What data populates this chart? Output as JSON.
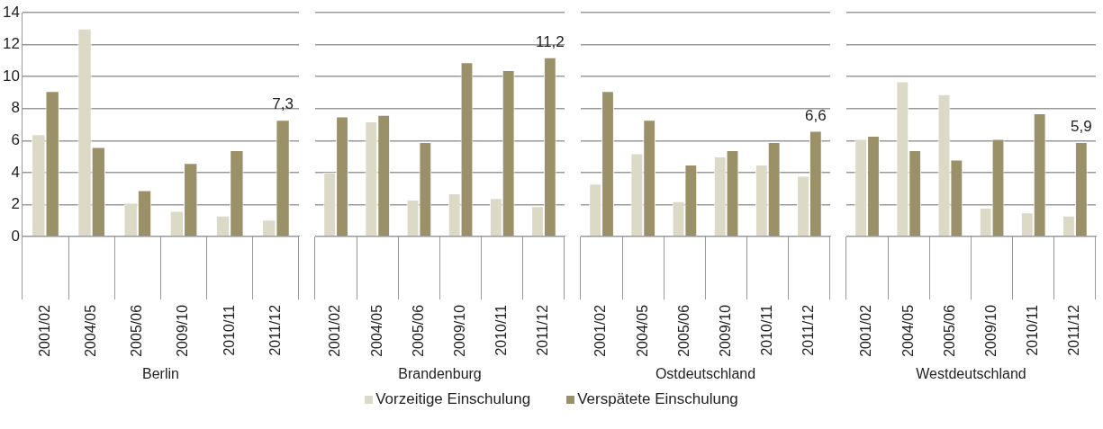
{
  "chart_data": [
    {
      "type": "bar",
      "xlabel": "Berlin",
      "categories": [
        "2001/02",
        "2004/05",
        "2005/06",
        "2009/10",
        "2010/11",
        "2011/12"
      ],
      "ylim": [
        0,
        14
      ],
      "yticks": [
        0,
        2,
        4,
        6,
        8,
        10,
        12,
        14
      ],
      "grid": "y",
      "legend": "bottom",
      "series": [
        {
          "name": "Vorzeitige Einschulung",
          "color": "#dcd9c6",
          "values": [
            6.4,
            13.0,
            2.1,
            1.6,
            1.3,
            1.05
          ]
        },
        {
          "name": "Verspätete Einschulung",
          "color": "#9b9169",
          "values": [
            9.1,
            5.6,
            2.9,
            4.6,
            5.4,
            7.3
          ],
          "value_labels": [
            null,
            null,
            null,
            null,
            null,
            "7,3"
          ]
        }
      ]
    },
    {
      "type": "bar",
      "xlabel": "Brandenburg",
      "categories": [
        "2001/02",
        "2004/05",
        "2005/06",
        "2009/10",
        "2010/11",
        "2011/12"
      ],
      "ylim": [
        0,
        14
      ],
      "yticks": [
        0,
        2,
        4,
        6,
        8,
        10,
        12,
        14
      ],
      "grid": "y",
      "tick_labels": "x",
      "series": [
        {
          "color": "#dcd9c6",
          "values": [
            4.0,
            7.2,
            2.3,
            2.7,
            2.4,
            1.9
          ]
        },
        {
          "color": "#9b9169",
          "values": [
            7.5,
            7.6,
            5.9,
            10.9,
            10.4,
            11.2
          ],
          "value_labels": [
            null,
            null,
            null,
            null,
            null,
            "11,2"
          ]
        }
      ]
    },
    {
      "type": "bar",
      "xlabel": "Ostdeutschland",
      "categories": [
        "2001/02",
        "2004/05",
        "2005/06",
        "2009/10",
        "2010/11",
        "2011/12"
      ],
      "ylim": [
        0,
        14
      ],
      "yticks": [
        0,
        2,
        4,
        6,
        8,
        10,
        12,
        14
      ],
      "grid": "y",
      "tick_labels": "x",
      "series": [
        {
          "color": "#dcd9c6",
          "values": [
            3.3,
            5.2,
            2.2,
            5.0,
            4.5,
            3.8
          ]
        },
        {
          "color": "#9b9169",
          "values": [
            9.1,
            7.3,
            4.5,
            5.4,
            5.9,
            6.6
          ],
          "value_labels": [
            null,
            null,
            null,
            null,
            null,
            "6,6"
          ]
        }
      ]
    },
    {
      "type": "bar",
      "xlabel": "Westdeutschland",
      "categories": [
        "2001/02",
        "2004/05",
        "2005/06",
        "2009/10",
        "2010/11",
        "2011/12"
      ],
      "ylim": [
        0,
        14
      ],
      "yticks": [
        0,
        2,
        4,
        6,
        8,
        10,
        12,
        14
      ],
      "grid": "y",
      "tick_labels": "x",
      "series": [
        {
          "color": "#dcd9c6",
          "values": [
            6.1,
            9.7,
            8.9,
            1.8,
            1.5,
            1.3
          ]
        },
        {
          "color": "#9b9169",
          "values": [
            6.3,
            5.4,
            4.8,
            6.1,
            7.7,
            5.9
          ],
          "value_labels": [
            null,
            null,
            null,
            null,
            null,
            "5,9"
          ]
        }
      ]
    }
  ]
}
